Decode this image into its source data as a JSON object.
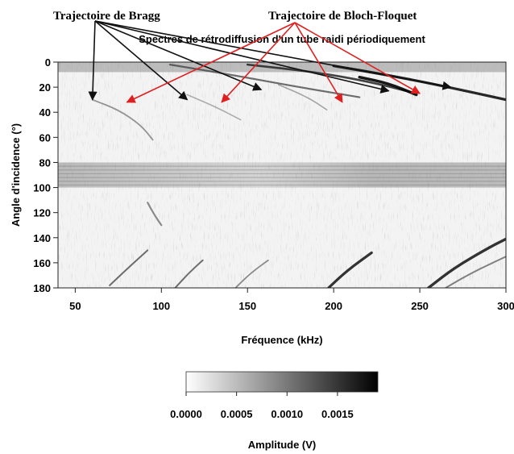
{
  "annotations": {
    "bragg": "Trajectoire de Bragg",
    "bloch": "Trajectoire de Bloch-Floquet"
  },
  "chart_data": {
    "type": "heatmap",
    "title": "Spectres de rétrodiffusion d'un tube raidi périodiquement",
    "xlabel": "Fréquence (kHz)",
    "ylabel": "Angle d'incidence  (°)",
    "xlim": [
      40,
      300
    ],
    "ylim": [
      0,
      180
    ],
    "y_reversed": true,
    "xticks": [
      50,
      100,
      150,
      200,
      250,
      300
    ],
    "yticks": [
      0,
      20,
      40,
      60,
      80,
      100,
      120,
      140,
      160,
      180
    ],
    "colorbar": {
      "label": "Amplitude (V)",
      "range": [
        0,
        0.0019
      ],
      "ticks": [
        "0.0000",
        "0.0005",
        "0.0010",
        "0.0015"
      ],
      "colors": [
        "#ffffff",
        "#000000"
      ]
    },
    "arrow_targets": {
      "bragg": [
        [
          60,
          30
        ],
        [
          115,
          30
        ],
        [
          158,
          22
        ],
        [
          232,
          23
        ],
        [
          268,
          20
        ]
      ],
      "bloch": [
        [
          80,
          32
        ],
        [
          135,
          32
        ],
        [
          205,
          32
        ],
        [
          250,
          25
        ]
      ],
      "arrow_colors": {
        "bragg": "#111111",
        "bloch": "#e02020"
      }
    }
  }
}
